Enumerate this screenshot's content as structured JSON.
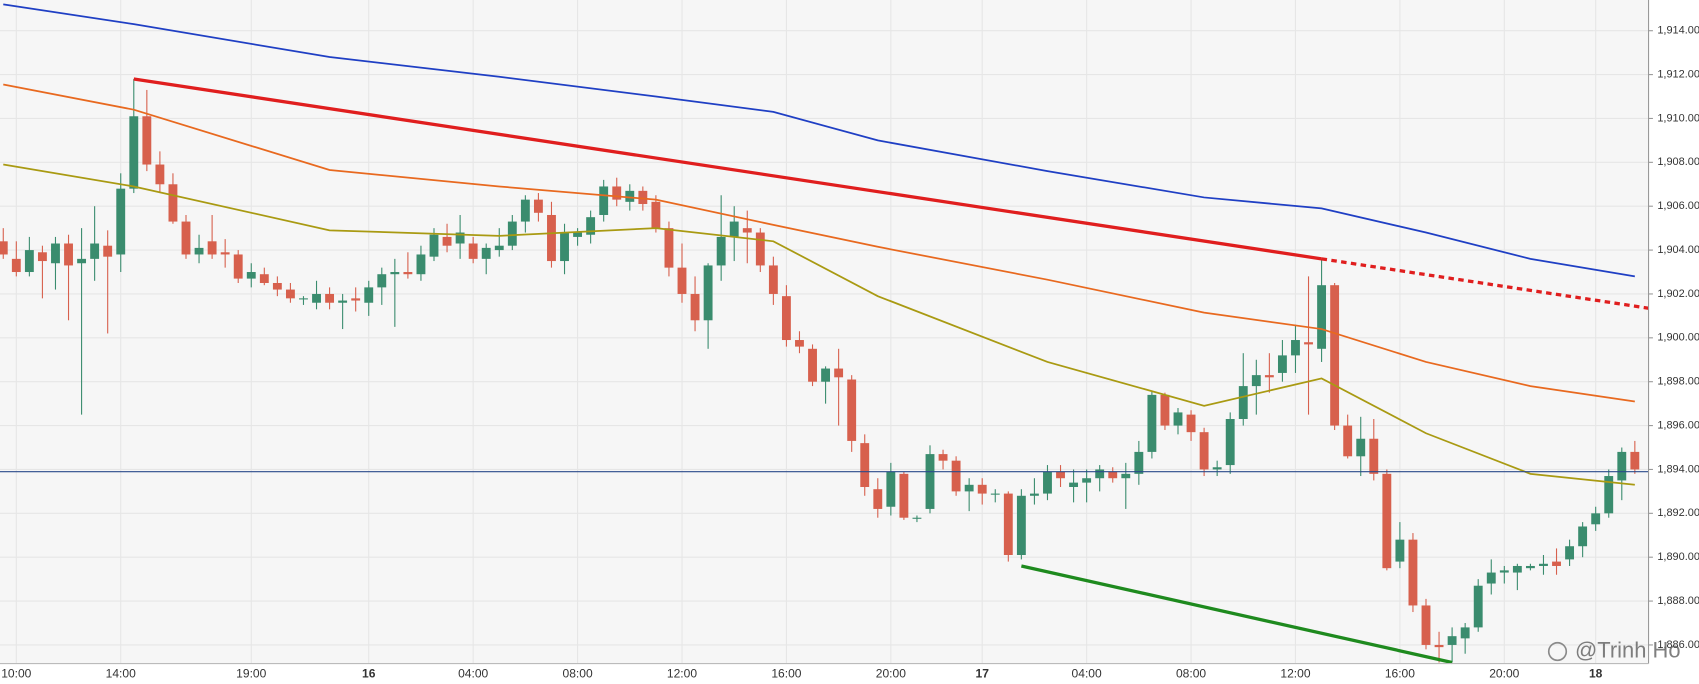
{
  "chart_data": {
    "type": "candlestick",
    "xlim": [
      -0.25,
      126.05
    ],
    "ylim": [
      1885.15,
      1915.4
    ],
    "grid": true,
    "up_color": "#3a8c6e",
    "down_color": "#d7604d",
    "xticks": [
      {
        "value": 1,
        "label": "10:00"
      },
      {
        "value": 9,
        "label": "14:00"
      },
      {
        "value": 19,
        "label": "19:00"
      },
      {
        "value": 28,
        "label": "16"
      },
      {
        "value": 36,
        "label": "04:00"
      },
      {
        "value": 44,
        "label": "08:00"
      },
      {
        "value": 52,
        "label": "12:00"
      },
      {
        "value": 60,
        "label": "16:00"
      },
      {
        "value": 68,
        "label": "20:00"
      },
      {
        "value": 75,
        "label": "17"
      },
      {
        "value": 83,
        "label": "04:00"
      },
      {
        "value": 91,
        "label": "08:00"
      },
      {
        "value": 99,
        "label": "12:00"
      },
      {
        "value": 107,
        "label": "16:00"
      },
      {
        "value": 115,
        "label": "20:00"
      },
      {
        "value": 122,
        "label": "18"
      }
    ],
    "yticks": [
      {
        "value": 1886,
        "label": "1,886.00"
      },
      {
        "value": 1888,
        "label": "1,888.00"
      },
      {
        "value": 1890,
        "label": "1,890.00"
      },
      {
        "value": 1892,
        "label": "1,892.00"
      },
      {
        "value": 1894,
        "label": "1,894.00"
      },
      {
        "value": 1896,
        "label": "1,896.00"
      },
      {
        "value": 1898,
        "label": "1,898.00"
      },
      {
        "value": 1900,
        "label": "1,900.00"
      },
      {
        "value": 1902,
        "label": "1,902.00"
      },
      {
        "value": 1904,
        "label": "1,904.00"
      },
      {
        "value": 1906,
        "label": "1,906.00"
      },
      {
        "value": 1908,
        "label": "1,908.00"
      },
      {
        "value": 1910,
        "label": "1,910.00"
      },
      {
        "value": 1912,
        "label": "1,912.00"
      },
      {
        "value": 1914,
        "label": "1,914.00"
      }
    ],
    "open": [
      1904.4,
      1903.6,
      1903.0,
      1903.9,
      1903.4,
      1904.3,
      1903.4,
      1903.6,
      1904.2,
      1903.8,
      1906.8,
      1910.1,
      1907.9,
      1907.0,
      1905.3,
      1903.8,
      1904.4,
      1903.9,
      1903.8,
      1902.7,
      1902.9,
      1902.5,
      1902.2,
      1901.8,
      1901.6,
      1902.0,
      1901.6,
      1901.8,
      1901.6,
      1902.3,
      1902.9,
      1903.0,
      1902.9,
      1903.7,
      1904.6,
      1904.3,
      1904.3,
      1903.6,
      1904.0,
      1904.2,
      1905.3,
      1906.3,
      1905.6,
      1903.5,
      1904.6,
      1904.7,
      1905.6,
      1906.9,
      1906.2,
      1906.7,
      1906.2,
      1905.0,
      1903.2,
      1902.0,
      1900.8,
      1903.3,
      1904.6,
      1905.0,
      1904.8,
      1903.3,
      1901.9,
      1899.9,
      1899.5,
      1898.0,
      1898.6,
      1898.1,
      1895.2,
      1893.1,
      1892.3,
      1893.8,
      1891.8,
      1892.2,
      1894.7,
      1894.4,
      1893.0,
      1893.3,
      1892.9,
      1892.9,
      1890.1,
      1892.8,
      1892.9,
      1893.9,
      1893.2,
      1893.4,
      1893.6,
      1893.9,
      1893.6,
      1893.8,
      1894.8,
      1897.4,
      1896.0,
      1896.5,
      1895.7,
      1894.0,
      1894.2,
      1896.3,
      1897.8,
      1898.3,
      1898.4,
      1899.2,
      1899.8,
      1899.5,
      1902.4,
      1896.0,
      1894.6,
      1895.4,
      1893.8,
      1889.8,
      1890.8,
      1887.8,
      1886.0,
      1886.0,
      1886.3,
      1886.8,
      1888.8,
      1889.3,
      1889.3,
      1889.5,
      1889.6,
      1889.8,
      1889.9,
      1890.5,
      1891.5,
      1892.0,
      1893.5,
      1894.8
    ],
    "high": [
      1905.0,
      1904.4,
      1904.6,
      1904.2,
      1904.6,
      1904.7,
      1905.0,
      1906.0,
      1904.9,
      1907.5,
      1911.8,
      1911.3,
      1908.5,
      1907.5,
      1905.6,
      1904.7,
      1905.6,
      1904.5,
      1904.0,
      1903.4,
      1903.2,
      1902.8,
      1902.5,
      1901.9,
      1902.6,
      1902.3,
      1902.0,
      1902.3,
      1902.6,
      1903.2,
      1903.6,
      1903.9,
      1904.2,
      1905.0,
      1905.2,
      1905.6,
      1904.6,
      1904.3,
      1905.0,
      1905.6,
      1906.5,
      1906.6,
      1906.2,
      1905.2,
      1905.0,
      1905.8,
      1907.2,
      1907.3,
      1907.0,
      1906.9,
      1906.5,
      1905.3,
      1904.3,
      1902.8,
      1903.4,
      1906.5,
      1906.0,
      1905.8,
      1905.0,
      1903.7,
      1902.4,
      1900.3,
      1899.7,
      1898.7,
      1899.5,
      1898.3,
      1895.6,
      1893.6,
      1894.3,
      1893.9,
      1891.9,
      1895.1,
      1894.9,
      1894.6,
      1893.6,
      1893.6,
      1893.1,
      1893.0,
      1893.1,
      1893.6,
      1894.2,
      1894.2,
      1894.0,
      1894.0,
      1894.2,
      1894.1,
      1894.3,
      1895.3,
      1897.6,
      1897.5,
      1896.8,
      1896.7,
      1895.9,
      1894.4,
      1896.6,
      1899.3,
      1899.0,
      1899.3,
      1899.9,
      1900.6,
      1902.8,
      1903.6,
      1902.5,
      1896.5,
      1896.4,
      1896.3,
      1894.0,
      1891.6,
      1891.1,
      1888.1,
      1886.6,
      1886.8,
      1887.0,
      1889.0,
      1889.9,
      1889.6,
      1889.7,
      1889.7,
      1890.1,
      1890.4,
      1890.8,
      1891.6,
      1892.3,
      1894.0,
      1895.0,
      1895.3
    ],
    "low": [
      1903.6,
      1902.8,
      1902.8,
      1901.8,
      1902.2,
      1900.8,
      1896.5,
      1902.6,
      1900.2,
      1903.0,
      1906.6,
      1907.6,
      1906.6,
      1905.2,
      1903.6,
      1903.4,
      1903.6,
      1903.2,
      1902.5,
      1902.3,
      1902.4,
      1901.9,
      1901.6,
      1901.5,
      1901.3,
      1901.3,
      1900.4,
      1901.2,
      1901.0,
      1901.5,
      1900.5,
      1902.7,
      1902.6,
      1903.5,
      1903.9,
      1903.6,
      1903.4,
      1902.9,
      1903.7,
      1904.0,
      1904.8,
      1905.3,
      1903.2,
      1902.9,
      1904.2,
      1904.3,
      1905.3,
      1906.0,
      1905.8,
      1905.8,
      1904.8,
      1902.8,
      1901.6,
      1900.3,
      1899.5,
      1902.6,
      1903.5,
      1903.4,
      1903.0,
      1901.5,
      1899.6,
      1899.3,
      1897.8,
      1897.0,
      1896.0,
      1894.8,
      1892.8,
      1891.8,
      1891.9,
      1891.7,
      1891.6,
      1892.0,
      1894.0,
      1892.8,
      1892.1,
      1892.4,
      1892.5,
      1889.8,
      1889.9,
      1892.4,
      1892.6,
      1893.2,
      1892.5,
      1892.5,
      1893.0,
      1893.4,
      1892.2,
      1893.3,
      1894.5,
      1895.8,
      1895.6,
      1895.3,
      1893.7,
      1893.7,
      1893.8,
      1896.0,
      1896.5,
      1897.5,
      1898.0,
      1898.4,
      1896.5,
      1898.9,
      1895.8,
      1894.5,
      1893.7,
      1893.5,
      1889.4,
      1889.5,
      1887.5,
      1885.8,
      1885.2,
      1885.2,
      1885.6,
      1886.6,
      1888.3,
      1888.8,
      1888.5,
      1889.4,
      1889.2,
      1889.2,
      1889.6,
      1890.0,
      1891.2,
      1891.8,
      1892.6,
      1893.8
    ],
    "close": [
      1903.8,
      1903.0,
      1904.0,
      1903.5,
      1904.3,
      1903.3,
      1903.6,
      1904.3,
      1903.7,
      1906.8,
      1910.1,
      1907.9,
      1907.0,
      1905.3,
      1903.8,
      1904.1,
      1903.8,
      1903.8,
      1902.7,
      1903.0,
      1902.5,
      1902.2,
      1901.8,
      1901.8,
      1902.0,
      1901.6,
      1901.7,
      1901.7,
      1902.3,
      1902.9,
      1903.0,
      1902.9,
      1903.8,
      1904.7,
      1904.2,
      1904.8,
      1903.6,
      1904.1,
      1904.2,
      1905.3,
      1906.3,
      1905.7,
      1903.5,
      1904.8,
      1904.8,
      1905.5,
      1906.9,
      1906.3,
      1906.7,
      1906.1,
      1905.0,
      1903.2,
      1902.0,
      1900.8,
      1903.3,
      1904.6,
      1905.3,
      1904.8,
      1903.3,
      1902.0,
      1899.9,
      1899.6,
      1898.0,
      1898.6,
      1898.2,
      1895.3,
      1893.2,
      1892.2,
      1893.9,
      1891.8,
      1891.8,
      1894.7,
      1894.4,
      1893.0,
      1893.3,
      1892.9,
      1892.9,
      1890.1,
      1892.8,
      1892.9,
      1893.9,
      1893.6,
      1893.4,
      1893.6,
      1894.0,
      1893.6,
      1893.8,
      1894.8,
      1897.4,
      1896.0,
      1896.6,
      1895.7,
      1894.0,
      1894.1,
      1896.3,
      1897.8,
      1898.3,
      1898.2,
      1899.2,
      1899.9,
      1899.7,
      1902.4,
      1896.0,
      1894.6,
      1895.4,
      1893.8,
      1889.5,
      1890.8,
      1887.8,
      1886.0,
      1885.9,
      1886.4,
      1886.8,
      1888.7,
      1889.3,
      1889.4,
      1889.6,
      1889.6,
      1889.7,
      1889.6,
      1890.5,
      1891.4,
      1892.0,
      1893.7,
      1894.8,
      1894.0
    ],
    "series": [
      {
        "color": "#1f3fc4",
        "x": [
          0,
          10,
          25,
          38,
          50,
          59,
          67,
          80,
          92,
          101,
          109,
          117,
          125
        ],
        "values": [
          1915.2,
          1914.3,
          1912.8,
          1911.9,
          1911.0,
          1910.3,
          1909.0,
          1907.6,
          1906.4,
          1905.9,
          1904.8,
          1903.6,
          1902.8
        ]
      },
      {
        "color": "#e8691f",
        "x": [
          0,
          10,
          25,
          38,
          50,
          59,
          67,
          80,
          92,
          101,
          109,
          117,
          125
        ],
        "values": [
          1911.55,
          1910.4,
          1907.65,
          1906.9,
          1906.3,
          1905.15,
          1904.15,
          1902.65,
          1901.15,
          1900.4,
          1898.9,
          1897.8,
          1897.1
        ]
      },
      {
        "color": "#a99a12",
        "x": [
          0,
          10,
          25,
          38,
          50,
          59,
          67,
          80,
          92,
          101,
          109,
          117,
          125
        ],
        "values": [
          1907.9,
          1906.9,
          1904.9,
          1904.65,
          1905.0,
          1904.4,
          1901.9,
          1898.9,
          1896.9,
          1898.15,
          1895.65,
          1893.8,
          1893.3
        ]
      }
    ],
    "trend_lines": [
      {
        "color": "#e01e1e",
        "style": "solid",
        "x": [
          10,
          101
        ],
        "values": [
          1911.8,
          1903.6
        ]
      },
      {
        "color": "#e01e1e",
        "style": "dotted",
        "x": [
          101,
          126.05
        ],
        "values": [
          1903.6,
          1901.35
        ]
      },
      {
        "color": "#1e8a1e",
        "style": "solid",
        "x": [
          78,
          111
        ],
        "values": [
          1889.6,
          1885.2
        ]
      }
    ],
    "price_line": {
      "color": "#2b4a8a",
      "value": 1893.9
    },
    "watermark": "@Trinh Ho"
  }
}
